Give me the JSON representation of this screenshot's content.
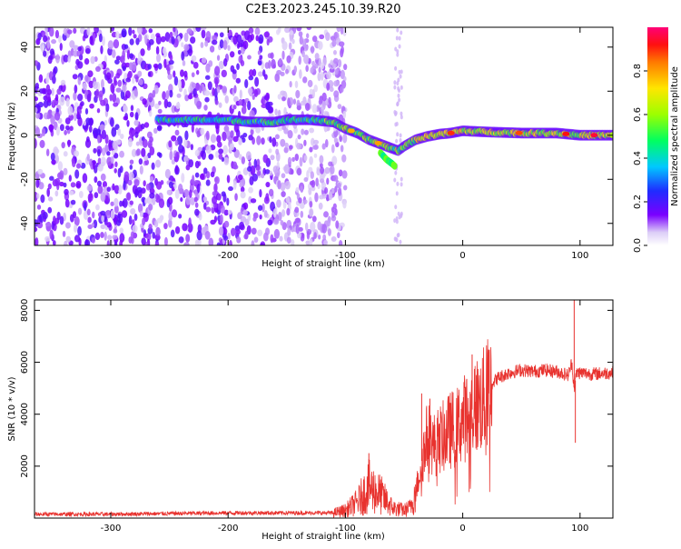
{
  "title": "C2E3.2023.245.10.39.R20",
  "colors": {
    "snr_line": "#e8322e",
    "axis": "#000000"
  },
  "chart_data": [
    {
      "type": "heatmap",
      "xlabel": "Height of straight line (km)",
      "ylabel": "Frequency (Hz)",
      "xlim": [
        -365,
        128
      ],
      "ylim": [
        -50,
        49
      ],
      "xticks": [
        -300,
        -200,
        -100,
        0,
        100
      ],
      "yticks": [
        -40,
        -20,
        0,
        20,
        40
      ],
      "colorbar": {
        "label": "Normalized spectral amplitude",
        "range": [
          0,
          1
        ],
        "ticks": [
          "0.0",
          "0.2",
          "0.4",
          "0.6",
          "0.8"
        ],
        "colormap": "rainbow"
      },
      "noise_region_x": [
        -365,
        -100
      ],
      "ridge": {
        "x": [
          -260,
          -240,
          -220,
          -200,
          -180,
          -160,
          -150,
          -130,
          -110,
          -100,
          -90,
          -80,
          -70,
          -60,
          -55,
          -50,
          -40,
          -30,
          -20,
          -10,
          0,
          20,
          50,
          80,
          100,
          128
        ],
        "y": [
          7,
          7,
          7,
          7,
          6,
          6,
          7,
          7,
          6,
          3,
          1,
          -2,
          -4,
          -6,
          -7,
          -5,
          -2,
          -0.5,
          0.5,
          1,
          2,
          1.5,
          1,
          1,
          0,
          0
        ]
      },
      "branch": {
        "x": [
          -70,
          -65,
          -60,
          -58
        ],
        "y": [
          -8,
          -11,
          -13,
          -14
        ]
      }
    },
    {
      "type": "line",
      "xlabel": "Height of straight line (km)",
      "ylabel": "SNR (10 * v/v)",
      "xlim": [
        -365,
        128
      ],
      "ylim": [
        0,
        8400
      ],
      "xticks": [
        -300,
        -200,
        -100,
        0,
        100
      ],
      "yticks": [
        2000,
        4000,
        6000,
        8000
      ],
      "envelope": {
        "x": [
          -365,
          -300,
          -200,
          -110,
          -100,
          -90,
          -80,
          -70,
          -60,
          -50,
          -45,
          -40,
          -35,
          -30,
          -25,
          -20,
          -15,
          -10,
          -5,
          0,
          5,
          10,
          15,
          20,
          25,
          30,
          40,
          50,
          60,
          70,
          80,
          90,
          93,
          95,
          97,
          100,
          110,
          128
        ],
        "y": [
          150,
          150,
          200,
          200,
          300,
          600,
          1200,
          900,
          400,
          300,
          400,
          1000,
          2200,
          3200,
          2800,
          3000,
          3200,
          3400,
          3500,
          3800,
          4000,
          4300,
          4400,
          4700,
          5200,
          5400,
          5600,
          5700,
          5650,
          5700,
          5650,
          5500,
          6000,
          5000,
          5600,
          5600,
          5550,
          5600
        ]
      },
      "spikes": [
        {
          "x": -80,
          "y": 2500
        },
        {
          "x": -35,
          "y": 4800
        },
        {
          "x": -28,
          "y": 4600
        },
        {
          "x": 8,
          "y": 6300
        },
        {
          "x": 95,
          "y": 8400
        },
        {
          "x": 96,
          "y": 2900
        }
      ]
    }
  ]
}
